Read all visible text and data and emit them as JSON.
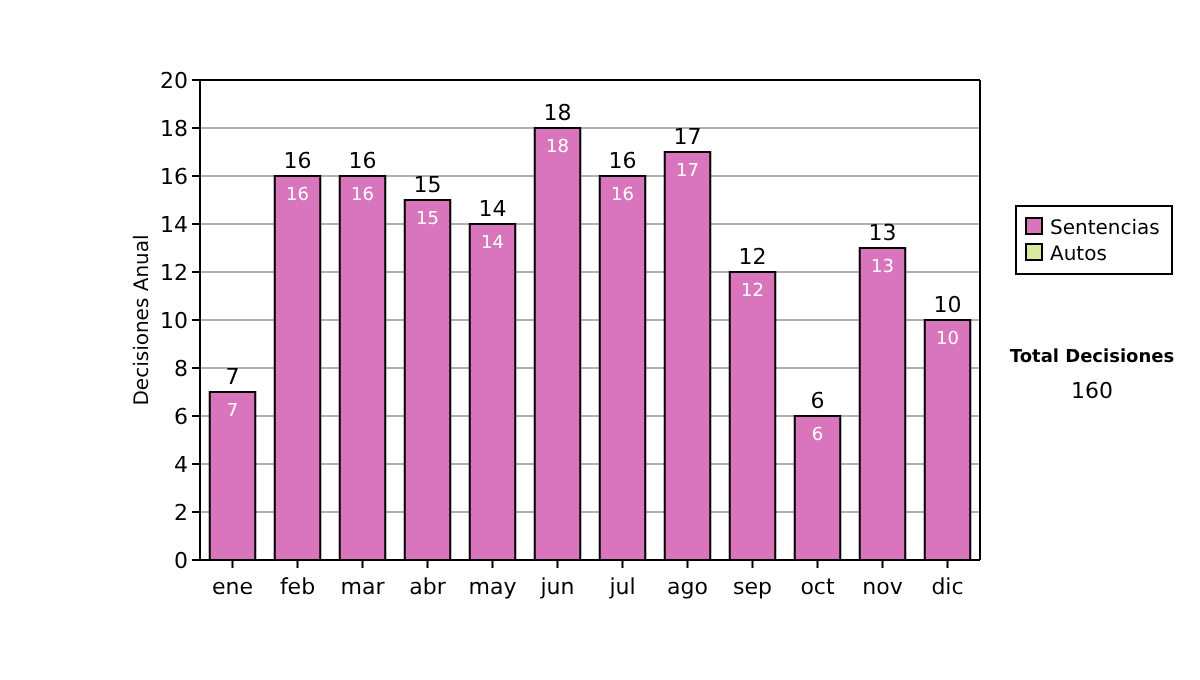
{
  "chart_data": {
    "type": "bar",
    "ylabel": "Decisiones Anual",
    "categories": [
      "ene",
      "feb",
      "mar",
      "abr",
      "may",
      "jun",
      "jul",
      "ago",
      "sep",
      "oct",
      "nov",
      "dic"
    ],
    "series": [
      {
        "name": "Sentencias",
        "color": "#d975bd",
        "values": [
          7,
          16,
          16,
          15,
          14,
          18,
          16,
          17,
          12,
          6,
          13,
          10
        ]
      },
      {
        "name": "Autos",
        "color": "#d8e8a0",
        "values": [
          null,
          null,
          null,
          null,
          null,
          null,
          null,
          null,
          null,
          null,
          null,
          null
        ]
      }
    ],
    "stacked": true,
    "data_labels": true,
    "totals": [
      "7",
      "16",
      "16",
      "15",
      "14",
      "18",
      "16",
      "17",
      "12",
      "6",
      "13",
      "10"
    ],
    "ylim": [
      0,
      20
    ],
    "yticks": [
      0,
      2,
      4,
      6,
      8,
      10,
      12,
      14,
      16,
      18,
      20
    ],
    "grid": "y",
    "legend": "right",
    "annotations": [
      "Total Decisiones",
      "160"
    ]
  }
}
